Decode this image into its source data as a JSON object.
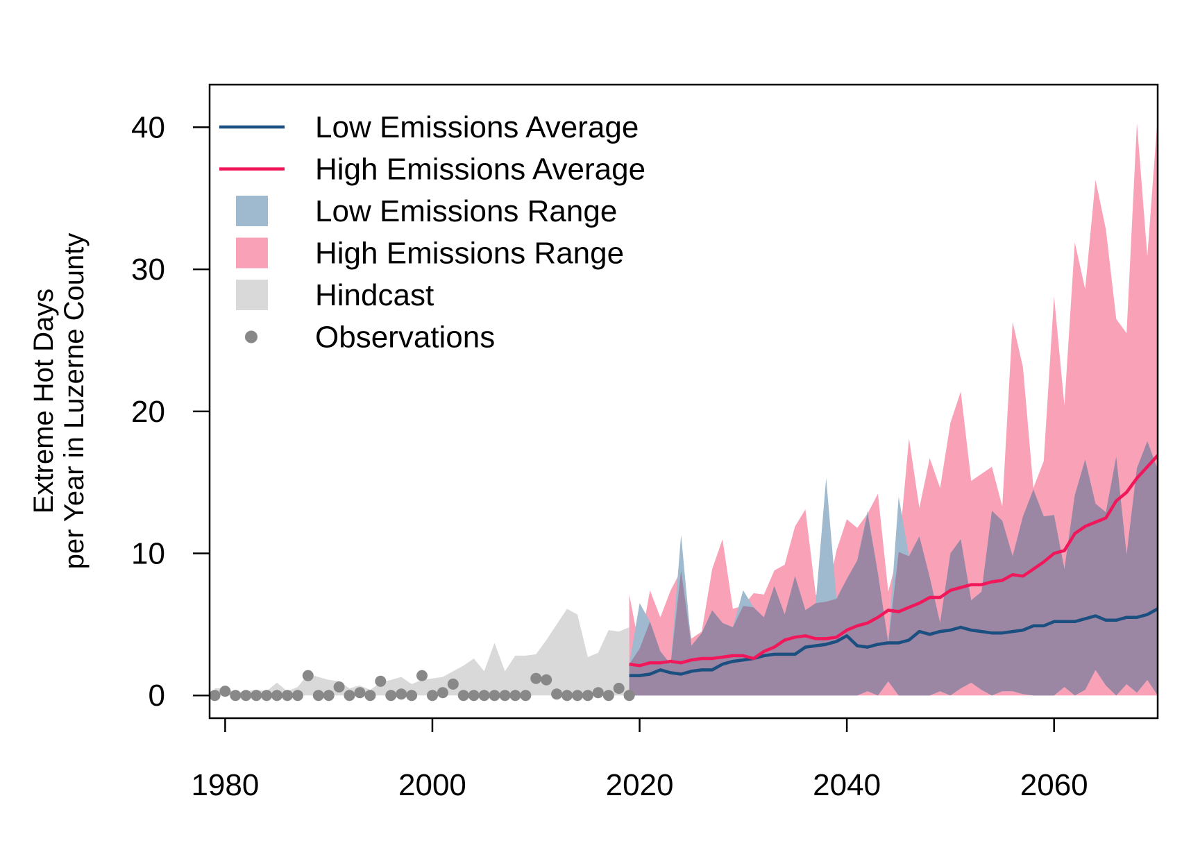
{
  "chart_data": {
    "type": "line",
    "title": "",
    "xlabel": "",
    "ylabel_line1": "Extreme Hot Days",
    "ylabel_line2": "per Year in Luzerne County",
    "xlim": [
      1978.5,
      2070
    ],
    "ylim": [
      -1.6,
      43
    ],
    "x_ticks": [
      1980,
      2000,
      2020,
      2040,
      2060
    ],
    "y_ticks": [
      0,
      10,
      20,
      30,
      40
    ],
    "legend_position": "top-left",
    "colors": {
      "low_avg": "#1b4f80",
      "high_avg": "#f0185a",
      "low_range": "#9fb9cf",
      "high_range": "#f9a1b6",
      "overlap": "#9b86a3",
      "hindcast": "#d9d9d9",
      "observations": "#888888"
    },
    "legend": [
      {
        "label": "Low Emissions Average",
        "key": "low_avg",
        "symbol": "line"
      },
      {
        "label": "High Emissions Average",
        "key": "high_avg",
        "symbol": "line"
      },
      {
        "label": "Low Emissions Range",
        "key": "low_range",
        "symbol": "box"
      },
      {
        "label": "High Emissions Range",
        "key": "high_range",
        "symbol": "box"
      },
      {
        "label": "Hindcast",
        "key": "hindcast",
        "symbol": "box"
      },
      {
        "label": "Observations",
        "key": "observations",
        "symbol": "dot"
      }
    ],
    "series": [
      {
        "key": "hindcast",
        "type": "area",
        "x": [
          1979,
          1980,
          1981,
          1982,
          1983,
          1984,
          1985,
          1986,
          1987,
          1988,
          1989,
          1990,
          1991,
          1992,
          1993,
          1994,
          1995,
          1996,
          1997,
          1998,
          1999,
          2000,
          2001,
          2002,
          2003,
          2004,
          2005,
          2006,
          2007,
          2008,
          2009,
          2010,
          2011,
          2012,
          2013,
          2014,
          2015,
          2016,
          2017,
          2018,
          2019
        ],
        "upper": [
          0.5,
          0.5,
          0.2,
          0.3,
          0.4,
          0.3,
          0.9,
          0.3,
          0.6,
          1.5,
          1.3,
          1.1,
          1.0,
          0.5,
          0.7,
          0.4,
          0.9,
          1.1,
          1.3,
          0.8,
          1.1,
          1.2,
          1.3,
          1.7,
          2.1,
          2.6,
          1.7,
          3.7,
          1.7,
          2.8,
          2.8,
          2.9,
          3.9,
          5.0,
          6.1,
          5.7,
          2.7,
          3.0,
          4.6,
          4.5,
          4.8
        ],
        "lower": [
          0,
          0,
          0,
          0,
          0,
          0,
          0,
          0,
          0,
          0,
          0,
          0,
          0,
          0,
          0,
          0,
          0,
          0,
          0,
          0,
          0,
          0,
          0,
          0,
          0,
          0,
          0,
          0,
          0,
          0,
          0,
          0,
          0,
          0,
          0,
          0,
          0,
          0,
          0,
          0,
          0
        ]
      },
      {
        "key": "high_range",
        "type": "area",
        "x": [
          2019,
          2020,
          2021,
          2022,
          2023,
          2024,
          2025,
          2026,
          2027,
          2028,
          2029,
          2030,
          2031,
          2032,
          2033,
          2034,
          2035,
          2036,
          2037,
          2038,
          2039,
          2040,
          2041,
          2042,
          2043,
          2044,
          2045,
          2046,
          2047,
          2048,
          2049,
          2050,
          2051,
          2052,
          2053,
          2054,
          2055,
          2056,
          2057,
          2058,
          2059,
          2060,
          2061,
          2062,
          2063,
          2064,
          2065,
          2066,
          2067,
          2068,
          2069,
          2070
        ],
        "upper": [
          7.1,
          3.3,
          7.4,
          5.5,
          7.4,
          8.8,
          4.0,
          4.5,
          8.9,
          11.0,
          6.1,
          6.3,
          7.2,
          7.1,
          8.8,
          9.2,
          11.9,
          13.1,
          7.1,
          6.6,
          10.2,
          12.4,
          11.8,
          12.8,
          14.2,
          7.3,
          10.1,
          18.1,
          13.2,
          16.7,
          14.6,
          19.2,
          21.4,
          15.1,
          15.6,
          16.1,
          13.3,
          26.3,
          23.1,
          14.6,
          16.5,
          28.1,
          20.4,
          31.9,
          28.6,
          36.3,
          32.8,
          26.5,
          25.5,
          40.3,
          30.9,
          40.8
        ],
        "lower": [
          0,
          0,
          0,
          0,
          0,
          0,
          0,
          0,
          0,
          0,
          0,
          0,
          0,
          0,
          0,
          0,
          0,
          0,
          0,
          0,
          0,
          0,
          0,
          0,
          0,
          0,
          0,
          0,
          0,
          0,
          0,
          0,
          0,
          0,
          0,
          0,
          0,
          0,
          0,
          0,
          0,
          0,
          0,
          0,
          0,
          0,
          0,
          0,
          0,
          0,
          0,
          0
        ]
      },
      {
        "key": "low_range",
        "type": "area",
        "x": [
          2019,
          2020,
          2021,
          2022,
          2023,
          2024,
          2025,
          2026,
          2027,
          2028,
          2029,
          2030,
          2031,
          2032,
          2033,
          2034,
          2035,
          2036,
          2037,
          2038,
          2039,
          2040,
          2041,
          2042,
          2043,
          2044,
          2045,
          2046,
          2047,
          2048,
          2049,
          2050,
          2051,
          2052,
          2053,
          2054,
          2055,
          2056,
          2057,
          2058,
          2059,
          2060,
          2061,
          2062,
          2063,
          2064,
          2065,
          2066,
          2067,
          2068,
          2069,
          2070
        ],
        "upper": [
          2.2,
          6.5,
          5.2,
          3.1,
          2.2,
          11.3,
          3.5,
          4.4,
          6.0,
          5.1,
          4.8,
          7.4,
          6.2,
          5.5,
          7.7,
          5.7,
          8.4,
          6.0,
          6.5,
          15.3,
          6.8,
          8.2,
          9.5,
          13.0,
          8.6,
          3.7,
          14.0,
          9.8,
          11.2,
          8.3,
          5.1,
          10.0,
          11.0,
          6.7,
          7.3,
          13.0,
          12.3,
          9.8,
          12.6,
          14.5,
          12.6,
          12.7,
          8.9,
          14.1,
          16.6,
          13.5,
          12.9,
          16.8,
          9.9,
          16.0,
          17.9,
          15.9
        ],
        "lower": [
          0,
          0,
          0,
          0,
          0,
          0,
          0,
          0,
          0,
          0,
          0,
          0,
          0,
          0,
          0,
          0,
          0,
          0,
          0,
          0,
          0,
          0,
          0,
          0.3,
          0,
          1.0,
          0,
          0,
          0,
          0,
          0.3,
          0,
          0.5,
          0.9,
          0.4,
          0,
          0.3,
          0.3,
          0.1,
          0,
          0,
          0,
          0.6,
          0,
          0.4,
          1.8,
          0.7,
          0,
          0.8,
          0.2,
          1.1,
          0
        ]
      },
      {
        "key": "low_avg",
        "type": "line",
        "x": [
          2019,
          2020,
          2021,
          2022,
          2023,
          2024,
          2025,
          2026,
          2027,
          2028,
          2029,
          2030,
          2031,
          2032,
          2033,
          2034,
          2035,
          2036,
          2037,
          2038,
          2039,
          2040,
          2041,
          2042,
          2043,
          2044,
          2045,
          2046,
          2047,
          2048,
          2049,
          2050,
          2051,
          2052,
          2053,
          2054,
          2055,
          2056,
          2057,
          2058,
          2059,
          2060,
          2061,
          2062,
          2063,
          2064,
          2065,
          2066,
          2067,
          2068,
          2069,
          2070
        ],
        "values": [
          1.4,
          1.4,
          1.5,
          1.8,
          1.6,
          1.5,
          1.7,
          1.8,
          1.8,
          2.2,
          2.4,
          2.5,
          2.6,
          2.8,
          2.9,
          2.9,
          2.9,
          3.4,
          3.5,
          3.6,
          3.8,
          4.2,
          3.5,
          3.4,
          3.6,
          3.7,
          3.7,
          3.9,
          4.5,
          4.3,
          4.5,
          4.6,
          4.8,
          4.6,
          4.5,
          4.4,
          4.4,
          4.5,
          4.6,
          4.9,
          4.9,
          5.2,
          5.2,
          5.2,
          5.4,
          5.6,
          5.3,
          5.3,
          5.5,
          5.5,
          5.7,
          6.1
        ]
      },
      {
        "key": "high_avg",
        "type": "line",
        "x": [
          2019,
          2020,
          2021,
          2022,
          2023,
          2024,
          2025,
          2026,
          2027,
          2028,
          2029,
          2030,
          2031,
          2032,
          2033,
          2034,
          2035,
          2036,
          2037,
          2038,
          2039,
          2040,
          2041,
          2042,
          2043,
          2044,
          2045,
          2046,
          2047,
          2048,
          2049,
          2050,
          2051,
          2052,
          2053,
          2054,
          2055,
          2056,
          2057,
          2058,
          2059,
          2060,
          2061,
          2062,
          2063,
          2064,
          2065,
          2066,
          2067,
          2068,
          2069,
          2070
        ],
        "values": [
          2.2,
          2.1,
          2.3,
          2.3,
          2.4,
          2.3,
          2.5,
          2.6,
          2.6,
          2.7,
          2.8,
          2.8,
          2.6,
          3.1,
          3.4,
          3.9,
          4.1,
          4.2,
          4.0,
          4.0,
          4.1,
          4.6,
          4.9,
          5.1,
          5.5,
          6.0,
          5.9,
          6.2,
          6.5,
          6.9,
          6.9,
          7.4,
          7.6,
          7.8,
          7.8,
          8.0,
          8.1,
          8.5,
          8.4,
          8.9,
          9.4,
          10.0,
          10.2,
          11.4,
          11.9,
          12.2,
          12.5,
          13.7,
          14.3,
          15.3,
          16.1,
          16.9
        ]
      },
      {
        "key": "observations",
        "type": "scatter",
        "x": [
          1979,
          1980,
          1981,
          1982,
          1983,
          1984,
          1985,
          1986,
          1987,
          1988,
          1989,
          1990,
          1991,
          1992,
          1993,
          1994,
          1995,
          1996,
          1997,
          1998,
          1999,
          2000,
          2001,
          2002,
          2003,
          2004,
          2005,
          2006,
          2007,
          2008,
          2009,
          2010,
          2011,
          2012,
          2013,
          2014,
          2015,
          2016,
          2017,
          2018,
          2019
        ],
        "values": [
          0,
          0.3,
          0,
          0,
          0,
          0,
          0,
          0,
          0,
          1.4,
          0,
          0,
          0.6,
          0,
          0.2,
          0,
          1.0,
          0,
          0.1,
          0,
          1.4,
          0,
          0.2,
          0.8,
          0,
          0,
          0,
          0,
          0,
          0,
          0,
          1.2,
          1.1,
          0.1,
          0,
          0,
          0,
          0.2,
          0,
          0.5,
          0
        ]
      }
    ]
  }
}
